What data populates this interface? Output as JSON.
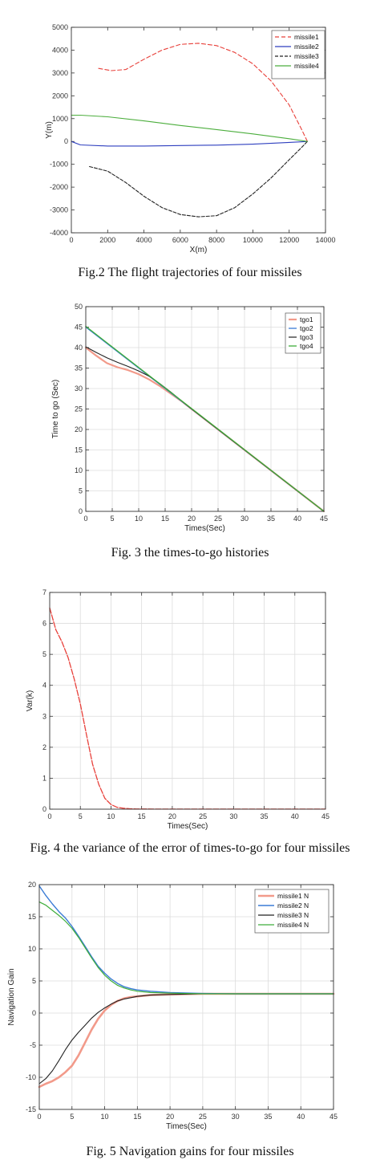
{
  "chart_data": [
    {
      "type": "line",
      "caption": "Fig.2 The flight trajectories of four missiles",
      "xlabel": "X(m)",
      "ylabel": "Y(m)",
      "xlim": [
        0,
        14000
      ],
      "ylim": [
        -4000,
        5000
      ],
      "xticks": [
        0,
        2000,
        4000,
        6000,
        8000,
        10000,
        12000,
        14000
      ],
      "yticks": [
        -4000,
        -3000,
        -2000,
        -1000,
        0,
        1000,
        2000,
        3000,
        4000,
        5000
      ],
      "grid": false,
      "legend": "top-right",
      "series": [
        {
          "name": "missile1",
          "color": "#e8403a",
          "dash": "5,3",
          "x": [
            1500,
            2200,
            3000,
            4000,
            5000,
            6000,
            7000,
            8000,
            9000,
            10000,
            11000,
            12000,
            12700,
            13000
          ],
          "y": [
            3200,
            3100,
            3150,
            3600,
            4000,
            4250,
            4300,
            4200,
            3900,
            3400,
            2650,
            1600,
            500,
            0
          ]
        },
        {
          "name": "missile2",
          "color": "#2e3fbf",
          "dash": "",
          "x": [
            0,
            500,
            2000,
            4000,
            6000,
            8000,
            10000,
            12000,
            13000
          ],
          "y": [
            0,
            -150,
            -200,
            -200,
            -180,
            -160,
            -120,
            -40,
            0
          ]
        },
        {
          "name": "missile3",
          "color": "#222222",
          "dash": "4,2",
          "x": [
            1000,
            2000,
            3000,
            4000,
            5000,
            6000,
            7000,
            8000,
            9000,
            10000,
            11000,
            12000,
            12700,
            13000
          ],
          "y": [
            -1100,
            -1300,
            -1800,
            -2400,
            -2900,
            -3200,
            -3300,
            -3250,
            -2900,
            -2300,
            -1600,
            -800,
            -250,
            0
          ]
        },
        {
          "name": "missile4",
          "color": "#4cae3d",
          "dash": "",
          "x": [
            0,
            500,
            2000,
            4000,
            6000,
            8000,
            10000,
            12000,
            13000
          ],
          "y": [
            1150,
            1150,
            1080,
            900,
            700,
            520,
            330,
            120,
            0
          ]
        }
      ]
    },
    {
      "type": "line",
      "caption": "Fig. 3 the times-to-go histories",
      "xlabel": "Times(Sec)",
      "ylabel": "Time to go (Sec)",
      "xlim": [
        0,
        45
      ],
      "ylim": [
        0,
        50
      ],
      "xticks": [
        0,
        5,
        10,
        15,
        20,
        25,
        30,
        35,
        40,
        45
      ],
      "yticks": [
        0,
        5,
        10,
        15,
        20,
        25,
        30,
        35,
        40,
        45,
        50
      ],
      "grid": true,
      "legend": "top-right",
      "series": [
        {
          "name": "tgo1",
          "color": "#f29a8a",
          "dash": "",
          "width": 2.2,
          "x": [
            0,
            2,
            4,
            6,
            8,
            10,
            12,
            14,
            16,
            18,
            20,
            45
          ],
          "y": [
            40,
            38,
            36.2,
            35.2,
            34.5,
            33.5,
            32.2,
            30.6,
            28.8,
            27,
            25,
            0
          ]
        },
        {
          "name": "tgo2",
          "color": "#3a7bd5",
          "dash": "",
          "width": 1.3,
          "x": [
            0,
            45
          ],
          "y": [
            45,
            0
          ]
        },
        {
          "name": "tgo3",
          "color": "#222222",
          "dash": "",
          "width": 1.1,
          "x": [
            0,
            2,
            4,
            6,
            8,
            10,
            12,
            14,
            16,
            18,
            20,
            45
          ],
          "y": [
            40.2,
            38.8,
            37.5,
            36.4,
            35.4,
            34.3,
            33,
            31.2,
            29.2,
            27.1,
            25,
            0
          ]
        },
        {
          "name": "tgo4",
          "color": "#3fae3a",
          "dash": "",
          "width": 1.3,
          "x": [
            0,
            45
          ],
          "y": [
            45.2,
            0
          ]
        }
      ]
    },
    {
      "type": "line",
      "caption": "Fig. 4 the variance of the error of times-to-go for four missiles",
      "xlabel": "Times(Sec)",
      "ylabel": "Var(k)",
      "xlim": [
        0,
        45
      ],
      "ylim": [
        0,
        7
      ],
      "xticks": [
        0,
        5,
        10,
        15,
        20,
        25,
        30,
        35,
        40,
        45
      ],
      "yticks": [
        0,
        1,
        2,
        3,
        4,
        5,
        6,
        7
      ],
      "grid": true,
      "legend": "none",
      "series": [
        {
          "color": "#e8403a",
          "dash": "7,2",
          "width": 1.3,
          "x": [
            0,
            1,
            2,
            3,
            4,
            5,
            6,
            7,
            8,
            9,
            10,
            11,
            12,
            13,
            14,
            15,
            20,
            30,
            45
          ],
          "y": [
            6.5,
            5.8,
            5.4,
            4.9,
            4.2,
            3.4,
            2.4,
            1.45,
            0.8,
            0.35,
            0.15,
            0.06,
            0.03,
            0.015,
            0.008,
            0.005,
            0.003,
            0.002,
            0.002
          ]
        }
      ]
    },
    {
      "type": "line",
      "caption": "Fig. 5 Navigation gains for four missiles",
      "xlabel": "Times(Sec)",
      "ylabel": "Navigation Gain",
      "xlim": [
        0,
        45
      ],
      "ylim": [
        -15,
        20
      ],
      "xticks": [
        0,
        5,
        10,
        15,
        20,
        25,
        30,
        35,
        40,
        45
      ],
      "yticks": [
        -15,
        -10,
        -5,
        0,
        5,
        10,
        15,
        20
      ],
      "grid": true,
      "legend": "top-right",
      "series": [
        {
          "name": "missile1 N",
          "color": "#f29a8a",
          "dash": "",
          "width": 2.6,
          "x": [
            0,
            1,
            2,
            3,
            4,
            5,
            6,
            7,
            8,
            9,
            10,
            11,
            12,
            13,
            14,
            15,
            17,
            20,
            25,
            30,
            45
          ],
          "y": [
            -11.5,
            -11,
            -10.6,
            -10,
            -9.2,
            -8.2,
            -6.6,
            -4.6,
            -2.6,
            -0.9,
            0.4,
            1.3,
            1.9,
            2.3,
            2.5,
            2.6,
            2.8,
            2.9,
            3.0,
            3.0,
            3.0
          ]
        },
        {
          "name": "missile2 N",
          "color": "#3a7bd5",
          "dash": "",
          "width": 1.4,
          "x": [
            0,
            1,
            2,
            3,
            4,
            5,
            6,
            7,
            8,
            9,
            10,
            11,
            12,
            13,
            14,
            15,
            17,
            20,
            25,
            30,
            45
          ],
          "y": [
            19.8,
            18.3,
            17,
            15.8,
            14.8,
            13.5,
            12,
            10.4,
            8.8,
            7.3,
            6.2,
            5.3,
            4.6,
            4.1,
            3.8,
            3.6,
            3.4,
            3.2,
            3.05,
            3.0,
            3.0
          ]
        },
        {
          "name": "missile3 N",
          "color": "#222222",
          "dash": "",
          "width": 1.1,
          "x": [
            0,
            1,
            2,
            3,
            4,
            5,
            6,
            7,
            8,
            9,
            10,
            11,
            12,
            13,
            14,
            15,
            17,
            20,
            25,
            30,
            45
          ],
          "y": [
            -11,
            -10.2,
            -9,
            -7.4,
            -5.7,
            -4.2,
            -3,
            -1.9,
            -0.8,
            0.1,
            0.8,
            1.4,
            1.9,
            2.2,
            2.4,
            2.6,
            2.8,
            2.9,
            3.0,
            3.0,
            3.0
          ]
        },
        {
          "name": "missile4 N",
          "color": "#3fae3a",
          "dash": "",
          "width": 1.2,
          "x": [
            0,
            1,
            2,
            3,
            4,
            5,
            6,
            7,
            8,
            9,
            10,
            11,
            12,
            13,
            14,
            15,
            17,
            20,
            25,
            30,
            45
          ],
          "y": [
            17.3,
            16.8,
            16,
            15.2,
            14.3,
            13.2,
            11.8,
            10.2,
            8.6,
            7.1,
            5.9,
            5.0,
            4.3,
            3.9,
            3.6,
            3.4,
            3.2,
            3.1,
            3.0,
            3.0,
            3.0
          ]
        }
      ]
    }
  ]
}
